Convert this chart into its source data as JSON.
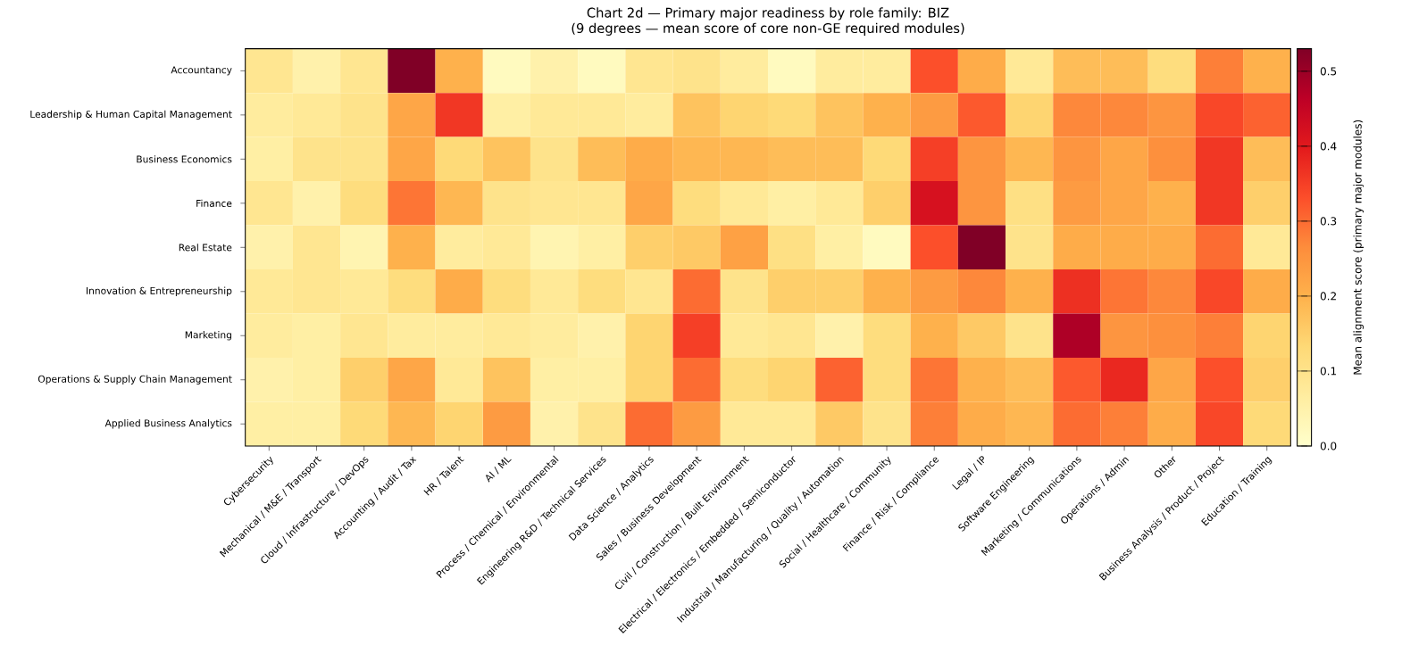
{
  "chart_data": {
    "type": "heatmap",
    "title": "Chart 2d — Primary major readiness by role family: BIZ",
    "subtitle": "(9 degrees — mean score of core non-GE required modules)",
    "clabel": "Mean alignment score (primary major modules)",
    "categories": [
      "Cybersecurity",
      "Mechanical / M&E / Transport",
      "Cloud / Infrastructure / DevOps",
      "Accounting / Audit / Tax",
      "HR / Talent",
      "AI / ML",
      "Process / Chemical / Environmental",
      "Engineering R&D / Technical Services",
      "Data Science / Analytics",
      "Sales / Business Development",
      "Civil / Construction / Built Environment",
      "Electrical / Electronics / Embedded / Semiconductor",
      "Industrial / Manufacturing / Quality / Automation",
      "Social / Healthcare / Community",
      "Finance / Risk / Compliance",
      "Legal / IP",
      "Software Engineering",
      "Marketing / Communications",
      "Operations / Admin",
      "Other",
      "Business Analysis / Product / Project",
      "Education / Training"
    ],
    "y_categories": [
      "Accountancy",
      "Leadership & Human Capital Management",
      "Business Economics",
      "Finance",
      "Real Estate",
      "Innovation & Entrepreneurship",
      "Marketing",
      "Operations & Supply Chain Management",
      "Applied Business Analytics"
    ],
    "cells": [
      [
        0.09,
        0.05,
        0.09,
        0.53,
        0.2,
        0.02,
        0.05,
        0.02,
        0.09,
        0.1,
        0.07,
        0.02,
        0.07,
        0.07,
        0.33,
        0.21,
        0.08,
        0.18,
        0.18,
        0.12,
        0.28,
        0.2
      ],
      [
        0.07,
        0.08,
        0.1,
        0.22,
        0.36,
        0.06,
        0.08,
        0.08,
        0.07,
        0.17,
        0.14,
        0.13,
        0.17,
        0.2,
        0.24,
        0.32,
        0.14,
        0.27,
        0.27,
        0.25,
        0.34,
        0.31
      ],
      [
        0.06,
        0.1,
        0.1,
        0.22,
        0.13,
        0.17,
        0.1,
        0.18,
        0.21,
        0.19,
        0.19,
        0.18,
        0.18,
        0.13,
        0.35,
        0.25,
        0.19,
        0.25,
        0.22,
        0.26,
        0.36,
        0.18
      ],
      [
        0.09,
        0.05,
        0.12,
        0.29,
        0.19,
        0.1,
        0.09,
        0.09,
        0.22,
        0.12,
        0.08,
        0.06,
        0.08,
        0.15,
        0.42,
        0.25,
        0.11,
        0.24,
        0.22,
        0.2,
        0.36,
        0.15
      ],
      [
        0.05,
        0.09,
        0.04,
        0.2,
        0.07,
        0.08,
        0.04,
        0.06,
        0.15,
        0.16,
        0.23,
        0.11,
        0.06,
        0.02,
        0.33,
        0.53,
        0.1,
        0.21,
        0.21,
        0.21,
        0.3,
        0.08
      ],
      [
        0.08,
        0.09,
        0.08,
        0.12,
        0.21,
        0.12,
        0.08,
        0.12,
        0.09,
        0.3,
        0.1,
        0.15,
        0.15,
        0.2,
        0.24,
        0.27,
        0.2,
        0.37,
        0.29,
        0.27,
        0.34,
        0.21
      ],
      [
        0.07,
        0.06,
        0.09,
        0.07,
        0.07,
        0.08,
        0.07,
        0.05,
        0.14,
        0.35,
        0.08,
        0.09,
        0.05,
        0.12,
        0.2,
        0.16,
        0.1,
        0.48,
        0.25,
        0.26,
        0.28,
        0.14
      ],
      [
        0.05,
        0.06,
        0.15,
        0.22,
        0.08,
        0.17,
        0.06,
        0.06,
        0.14,
        0.3,
        0.12,
        0.14,
        0.31,
        0.12,
        0.29,
        0.2,
        0.18,
        0.32,
        0.38,
        0.22,
        0.33,
        0.15
      ],
      [
        0.06,
        0.06,
        0.13,
        0.19,
        0.14,
        0.24,
        0.05,
        0.1,
        0.3,
        0.24,
        0.08,
        0.08,
        0.16,
        0.1,
        0.28,
        0.21,
        0.19,
        0.3,
        0.28,
        0.21,
        0.34,
        0.13
      ]
    ],
    "clim": [
      0,
      0.53
    ],
    "cticks": [
      {
        "value": 0,
        "label": "0.0"
      },
      {
        "value": 0.1,
        "label": "0.1"
      },
      {
        "value": 0.2,
        "label": "0.2"
      },
      {
        "value": 0.3,
        "label": "0.3"
      },
      {
        "value": 0.4,
        "label": "0.4"
      },
      {
        "value": 0.5,
        "label": "0.5"
      }
    ]
  }
}
